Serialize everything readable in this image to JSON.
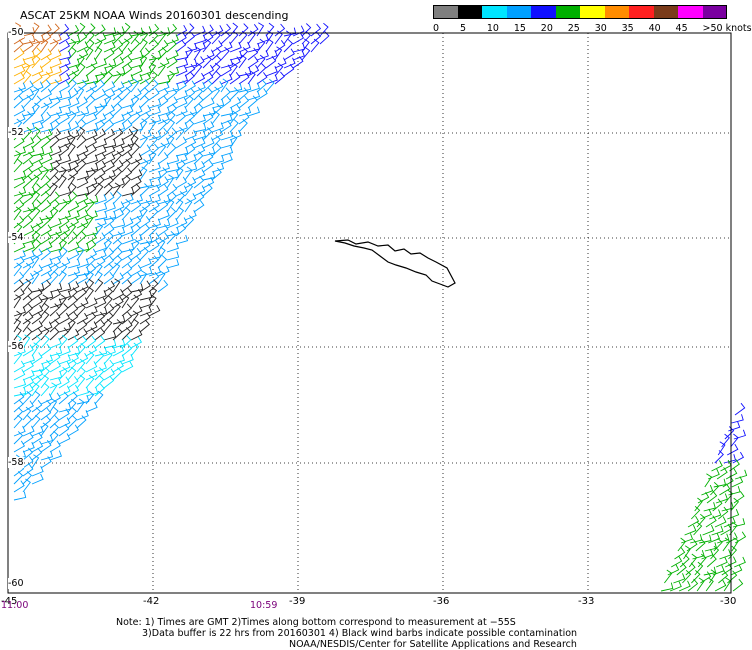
{
  "title": "ASCAT 25KM NOAA Winds 20160301 descending",
  "legend": {
    "ticks": [
      "0",
      "5",
      "10",
      "15",
      "20",
      "25",
      "30",
      "35",
      "40",
      "45",
      ">50 knots"
    ],
    "colors": [
      "#7f7f7f",
      "#000000",
      "#00e5ff",
      "#00a0ff",
      "#1010ff",
      "#00b000",
      "#ffff00",
      "#ff8c00",
      "#ff2020",
      "#7a3b1a",
      "#ff00ff",
      "#7a00a0"
    ]
  },
  "map": {
    "lon_labels": [
      "-45",
      "-42",
      "-39",
      "-36",
      "-33",
      "-30"
    ],
    "lat_labels": [
      "-50",
      "-52",
      "-54",
      "-56",
      "-58",
      "-60"
    ],
    "landmass": "South Georgia"
  },
  "time_labels": {
    "left": "11:00",
    "mid": "10:59"
  },
  "notes": {
    "line1": "Note:  1) Times are GMT 2)Times along bottom correspond to measurement at −55S",
    "line2": "3)Data buffer is 22 hrs from 20160301 4) Black wind barbs indicate possible contamination",
    "line3": "NOAA/NESDIS/Center for Satellite Applications and Research"
  }
}
